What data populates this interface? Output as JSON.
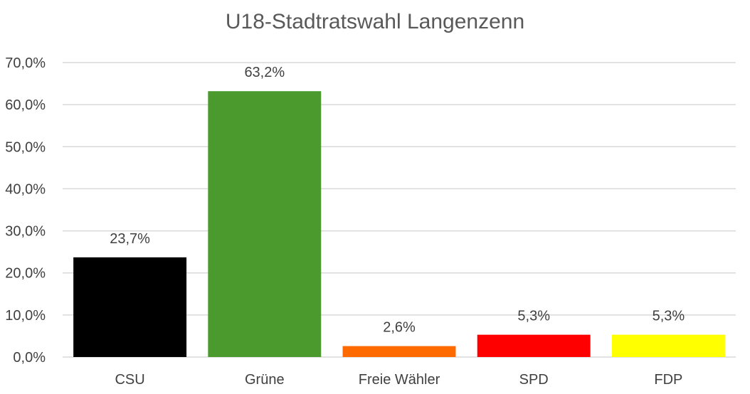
{
  "chart_data": {
    "type": "bar",
    "title": "U18-Stadtratswahl Langenzenn",
    "xlabel": "",
    "ylabel": "",
    "categories": [
      "CSU",
      "Grüne",
      "Freie Wähler",
      "SPD",
      "FDP"
    ],
    "values": [
      23.7,
      63.2,
      2.6,
      5.3,
      5.3
    ],
    "data_labels": [
      "23,7%",
      "63,2%",
      "2,6%",
      "5,3%",
      "5,3%"
    ],
    "colors": [
      "#000000",
      "#4a9a2e",
      "#ff6a00",
      "#ff0000",
      "#ffff00"
    ],
    "ylim": [
      0,
      70
    ],
    "yticks": [
      0,
      10,
      20,
      30,
      40,
      50,
      60,
      70
    ],
    "ytick_labels": [
      "0,0%",
      "10,0%",
      "20,0%",
      "30,0%",
      "40,0%",
      "50,0%",
      "60,0%",
      "70,0%"
    ],
    "grid": true,
    "legend": "none"
  },
  "style": {
    "gridline_color": "#d9d9d9",
    "text_color": "#404040",
    "title_color": "#595959"
  }
}
